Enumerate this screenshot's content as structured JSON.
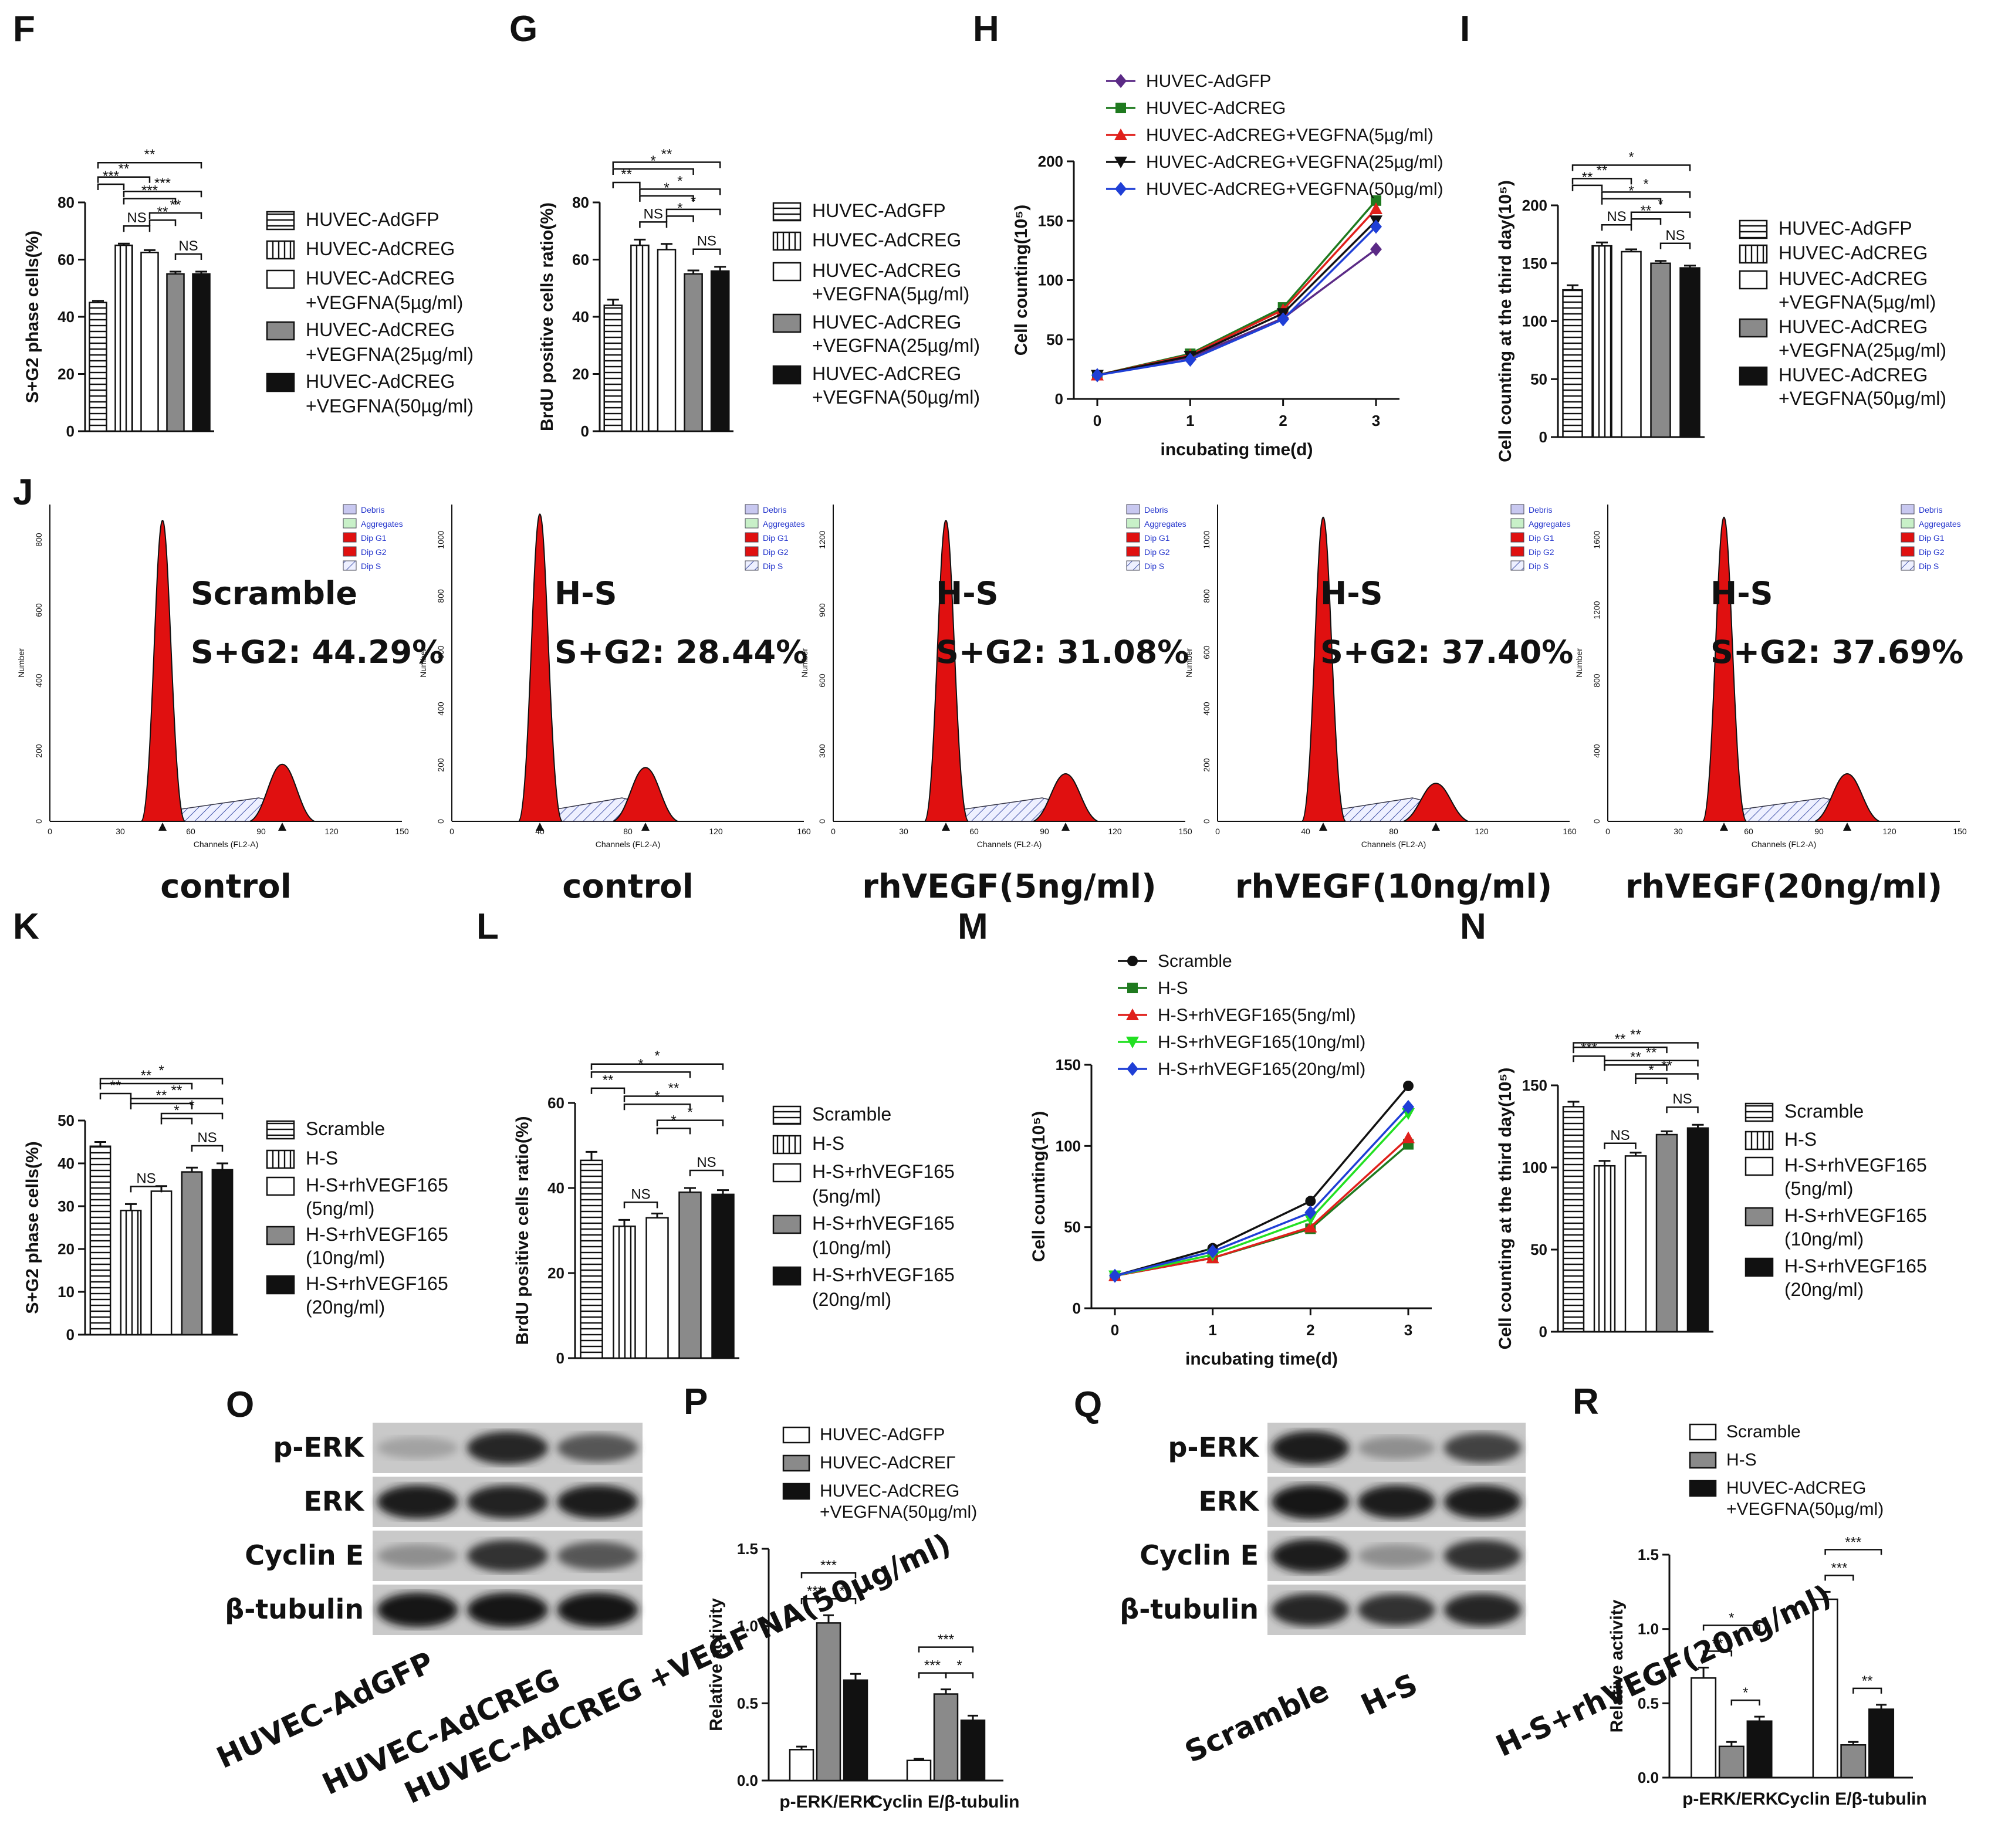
{
  "colors": {
    "purple": "#5b2a86",
    "green": "#1f7a1f",
    "red": "#e0201b",
    "black": "#111111",
    "blue": "#1f3fd6",
    "lime": "#22e022",
    "flowred": "#e01010"
  },
  "chart_data": [
    {
      "id": "F",
      "type": "bar",
      "panel_label": "F",
      "ylabel": "S+G2 phase cells(%)",
      "ylim": [
        0,
        80
      ],
      "yticks": [
        0,
        20,
        40,
        60,
        80
      ],
      "categories": [
        "HUVEC-AdGFP",
        "HUVEC-AdCREG",
        "HUVEC-AdCREG +VEGFNA(5µg/ml)",
        "HUVEC-AdCREG +VEGFNA(25µg/ml)",
        "HUVEC-AdCREG +VEGFNA(50µg/ml)"
      ],
      "values": [
        45,
        65,
        62.5,
        55,
        55
      ],
      "errors": [
        0.6,
        0.6,
        0.8,
        0.8,
        0.8
      ],
      "legend": [
        [
          "HUVEC-AdGFP"
        ],
        [
          "HUVEC-AdCREG"
        ],
        [
          "HUVEC-AdCREG",
          "+VEGFNA(5µg/ml)"
        ],
        [
          "HUVEC-AdCREG",
          "+VEGFNA(25µg/ml)"
        ],
        [
          "HUVEC-AdCREG",
          "+VEGFNA(50µg/ml)"
        ]
      ],
      "fills": [
        "hstripe",
        "vstripe",
        "white",
        "gray",
        "black"
      ],
      "sig": [
        [
          0,
          4,
          "**"
        ],
        [
          0,
          2,
          "**"
        ],
        [
          0,
          1,
          "***"
        ],
        [
          1,
          4,
          "***"
        ],
        [
          1,
          3,
          "***"
        ],
        [
          2,
          4,
          "**"
        ],
        [
          2,
          3,
          "**"
        ],
        [
          1,
          2,
          "NS"
        ],
        [
          3,
          4,
          "NS"
        ]
      ]
    },
    {
      "id": "G",
      "type": "bar",
      "panel_label": "G",
      "ylabel": "BrdU positive cells ratio(%)",
      "ylim": [
        0,
        80
      ],
      "yticks": [
        0,
        20,
        40,
        60,
        80
      ],
      "categories": [
        "HUVEC-AdGFP",
        "HUVEC-AdCREG",
        "HUVEC-AdCREG +VEGFNA(5µg/ml)",
        "HUVEC-AdCREG +VEGFNA(25µg/ml)",
        "HUVEC-AdCREG +VEGFNA(50µg/ml)"
      ],
      "values": [
        44,
        65,
        63.5,
        55,
        56
      ],
      "errors": [
        2,
        2,
        2,
        1.2,
        1.5
      ],
      "legend": [
        [
          "HUVEC-AdGFP"
        ],
        [
          "HUVEC-AdCREG"
        ],
        [
          "HUVEC-AdCREG",
          "+VEGFNA(5µg/ml)"
        ],
        [
          "HUVEC-AdCREG",
          "+VEGFNA(25µg/ml)"
        ],
        [
          "HUVEC-AdCREG",
          "+VEGFNA(50µg/ml)"
        ]
      ],
      "fills": [
        "hstripe",
        "vstripe",
        "white",
        "gray",
        "black"
      ],
      "sig": [
        [
          0,
          4,
          "**"
        ],
        [
          0,
          3,
          "*"
        ],
        [
          0,
          1,
          "**"
        ],
        [
          1,
          4,
          "*"
        ],
        [
          1,
          3,
          "*"
        ],
        [
          2,
          4,
          "*"
        ],
        [
          2,
          3,
          "*"
        ],
        [
          1,
          2,
          "NS"
        ],
        [
          3,
          4,
          "NS"
        ]
      ]
    },
    {
      "id": "H",
      "type": "line",
      "panel_label": "H",
      "ylabel": "Cell counting(10⁵)",
      "xlabel": "incubating time(d)",
      "ylim": [
        0,
        200
      ],
      "yticks": [
        0,
        50,
        100,
        150,
        200
      ],
      "x": [
        0,
        1,
        2,
        3
      ],
      "series": [
        {
          "name": "HUVEC-AdGFP",
          "values": [
            20,
            35,
            68,
            126
          ],
          "color": "#5b2a86",
          "marker": "diamond"
        },
        {
          "name": "HUVEC-AdCREG",
          "values": [
            20,
            38,
            77,
            167
          ],
          "color": "#1f7a1f",
          "marker": "square"
        },
        {
          "name": "HUVEC-AdCREG+VEGFNA(5µg/ml)",
          "values": [
            20,
            37,
            75,
            160
          ],
          "color": "#e0201b",
          "marker": "triangle"
        },
        {
          "name": "HUVEC-AdCREG+VEGFNA(25µg/ml)",
          "values": [
            20,
            36,
            72,
            150
          ],
          "color": "#111111",
          "marker": "triangle-down"
        },
        {
          "name": "HUVEC-AdCREG+VEGFNA(50µg/ml)",
          "values": [
            20,
            33,
            67,
            145
          ],
          "color": "#1f3fd6",
          "marker": "diamond"
        }
      ]
    },
    {
      "id": "I",
      "type": "bar",
      "panel_label": "I",
      "ylabel": "Cell counting at the third day(10⁵)",
      "ylim": [
        0,
        200
      ],
      "yticks": [
        0,
        50,
        100,
        150,
        200
      ],
      "categories": [
        "HUVEC-AdGFP",
        "HUVEC-AdCREG",
        "HUVEC-AdCREG +VEGFNA(5µg/ml)",
        "HUVEC-AdCREG +VEGFNA(25µg/ml)",
        "HUVEC-AdCREG +VEGFNA(50µg/ml)"
      ],
      "values": [
        127,
        165,
        160,
        150,
        146
      ],
      "errors": [
        4,
        3,
        2,
        2,
        2
      ],
      "legend": [
        [
          "HUVEC-AdGFP"
        ],
        [
          "HUVEC-AdCREG"
        ],
        [
          "HUVEC-AdCREG",
          "+VEGFNA(5µg/ml)"
        ],
        [
          "HUVEC-AdCREG",
          "+VEGFNA(25µg/ml)"
        ],
        [
          "HUVEC-AdCREG",
          "+VEGFNA(50µg/ml)"
        ]
      ],
      "fills": [
        "hstripe",
        "vstripe",
        "white",
        "gray",
        "black"
      ],
      "sig": [
        [
          0,
          4,
          "*"
        ],
        [
          0,
          2,
          "**"
        ],
        [
          0,
          1,
          "**"
        ],
        [
          1,
          4,
          "*"
        ],
        [
          1,
          3,
          "*"
        ],
        [
          2,
          4,
          "*"
        ],
        [
          2,
          3,
          "**"
        ],
        [
          1,
          2,
          "NS"
        ],
        [
          3,
          4,
          "NS"
        ]
      ]
    },
    {
      "id": "K",
      "type": "bar",
      "panel_label": "K",
      "ylabel": "S+G2 phase cells(%)",
      "ylim": [
        0,
        50
      ],
      "yticks": [
        0,
        10,
        20,
        30,
        40,
        50
      ],
      "categories": [
        "Scramble",
        "H-S",
        "H-S+rhVEGF165 (5ng/ml)",
        "H-S+rhVEGF165 (10ng/ml)",
        "H-S+rhVEGF165 (20ng/ml)"
      ],
      "values": [
        44,
        29,
        33.5,
        38,
        38.5
      ],
      "errors": [
        1,
        1.5,
        1.2,
        1,
        1.5
      ],
      "legend": [
        [
          "Scramble"
        ],
        [
          "H-S"
        ],
        [
          "H-S+rhVEGF165",
          "(5ng/ml)"
        ],
        [
          "H-S+rhVEGF165",
          "(10ng/ml)"
        ],
        [
          "H-S+rhVEGF165",
          "(20ng/ml)"
        ]
      ],
      "fills": [
        "hstripe",
        "vstripe",
        "white",
        "gray",
        "black"
      ],
      "sig": [
        [
          0,
          4,
          "*"
        ],
        [
          0,
          3,
          "**"
        ],
        [
          0,
          1,
          "**"
        ],
        [
          1,
          4,
          "**"
        ],
        [
          1,
          3,
          "**"
        ],
        [
          2,
          4,
          "*"
        ],
        [
          2,
          3,
          "*"
        ],
        [
          1,
          2,
          "NS"
        ],
        [
          3,
          4,
          "NS"
        ]
      ]
    },
    {
      "id": "L",
      "type": "bar",
      "panel_label": "L",
      "ylabel": "BrdU positive cells ratio(%)",
      "ylim": [
        0,
        60
      ],
      "yticks": [
        0,
        20,
        40,
        60
      ],
      "categories": [
        "Scramble",
        "H-S",
        "H-S+rhVEGF165 (5ng/ml)",
        "H-S+rhVEGF165 (10ng/ml)",
        "H-S+rhVEGF165 (20ng/ml)"
      ],
      "values": [
        46.5,
        31,
        33,
        39,
        38.5
      ],
      "errors": [
        2,
        1.5,
        1,
        1,
        1
      ],
      "legend": [
        [
          "Scramble"
        ],
        [
          "H-S"
        ],
        [
          "H-S+rhVEGF165",
          "(5ng/ml)"
        ],
        [
          "H-S+rhVEGF165",
          "(10ng/ml)"
        ],
        [
          "H-S+rhVEGF165",
          "(20ng/ml)"
        ]
      ],
      "fills": [
        "hstripe",
        "vstripe",
        "white",
        "gray",
        "black"
      ],
      "sig": [
        [
          0,
          4,
          "*"
        ],
        [
          0,
          3,
          "*"
        ],
        [
          0,
          1,
          "**"
        ],
        [
          1,
          4,
          "**"
        ],
        [
          1,
          3,
          "*"
        ],
        [
          2,
          4,
          "*"
        ],
        [
          2,
          3,
          "*"
        ],
        [
          1,
          2,
          "NS"
        ],
        [
          3,
          4,
          "NS"
        ]
      ]
    },
    {
      "id": "M",
      "type": "line",
      "panel_label": "M",
      "ylabel": "Cell counting(10⁵)",
      "xlabel": "incubating time(d)",
      "ylim": [
        0,
        150
      ],
      "yticks": [
        0,
        50,
        100,
        150
      ],
      "x": [
        0,
        1,
        2,
        3
      ],
      "series": [
        {
          "name": "Scramble",
          "values": [
            20,
            37,
            66,
            137
          ],
          "color": "#111111",
          "marker": "circle"
        },
        {
          "name": "H-S",
          "values": [
            20,
            31,
            49,
            101
          ],
          "color": "#1f7a1f",
          "marker": "square"
        },
        {
          "name": "H-S+rhVEGF165(5ng/ml)",
          "values": [
            20,
            31,
            50,
            105
          ],
          "color": "#e0201b",
          "marker": "triangle"
        },
        {
          "name": "H-S+rhVEGF165(10ng/ml)",
          "values": [
            20,
            33,
            55,
            120
          ],
          "color": "#22e022",
          "marker": "triangle-down"
        },
        {
          "name": "H-S+rhVEGF165(20ng/ml)",
          "values": [
            20,
            35,
            59,
            124
          ],
          "color": "#1f3fd6",
          "marker": "diamond"
        }
      ]
    },
    {
      "id": "N",
      "type": "bar",
      "panel_label": "N",
      "ylabel": "Cell counting at the third day(10⁵)",
      "ylim": [
        0,
        150
      ],
      "yticks": [
        0,
        50,
        100,
        150
      ],
      "categories": [
        "Scramble",
        "H-S",
        "H-S+rhVEGF165 (5ng/ml)",
        "H-S+rhVEGF165 (10ng/ml)",
        "H-S+rhVEGF165 (20ng/ml)"
      ],
      "values": [
        137,
        101,
        107,
        120,
        124
      ],
      "errors": [
        3,
        3,
        2,
        2,
        2
      ],
      "legend": [
        [
          "Scramble"
        ],
        [
          "H-S"
        ],
        [
          "H-S+rhVEGF165",
          "(5ng/ml)"
        ],
        [
          "H-S+rhVEGF165",
          "(10ng/ml)"
        ],
        [
          "H-S+rhVEGF165",
          "(20ng/ml)"
        ]
      ],
      "fills": [
        "hstripe",
        "vstripe",
        "white",
        "gray",
        "black"
      ],
      "sig": [
        [
          0,
          4,
          "**"
        ],
        [
          0,
          3,
          "**"
        ],
        [
          0,
          1,
          "***"
        ],
        [
          1,
          4,
          "**"
        ],
        [
          1,
          3,
          "**"
        ],
        [
          2,
          4,
          "**"
        ],
        [
          2,
          3,
          "*"
        ],
        [
          1,
          2,
          "NS"
        ],
        [
          3,
          4,
          "NS"
        ]
      ]
    },
    {
      "id": "P",
      "type": "bar",
      "panel_label": "P",
      "ylabel": "Relative activity",
      "ylim": [
        0,
        1.5
      ],
      "yticks": [
        0.0,
        0.5,
        1.0,
        1.5
      ],
      "categories": [
        "p-ERK/ERK",
        "Cyclin E/β-tubulin"
      ],
      "series": [
        {
          "name": "HUVEC-AdGFP",
          "values": [
            0.2,
            0.13
          ],
          "errors": [
            0.02,
            0.01
          ],
          "fill": "white"
        },
        {
          "name": "HUVEC-AdCREΓ",
          "values": [
            1.02,
            0.56
          ],
          "errors": [
            0.05,
            0.03
          ],
          "fill": "gray"
        },
        {
          "name": "HUVEC-AdCREG +VEGFNA(50µg/ml)",
          "values": [
            0.65,
            0.39
          ],
          "errors": [
            0.04,
            0.03
          ],
          "fill": "black"
        }
      ],
      "legend": [
        [
          "HUVEC-AdGFP"
        ],
        [
          "HUVEC-AdCREΓ"
        ],
        [
          "HUVEC-AdCREG",
          "+VEGFNA(50µg/ml)"
        ]
      ],
      "sig": [
        [
          0,
          0,
          2,
          "***"
        ],
        [
          0,
          0,
          1,
          "***"
        ],
        [
          0,
          1,
          2,
          "*"
        ],
        [
          1,
          0,
          2,
          "***"
        ],
        [
          1,
          0,
          1,
          "***"
        ],
        [
          1,
          1,
          2,
          "*"
        ]
      ]
    },
    {
      "id": "R",
      "type": "bar",
      "panel_label": "R",
      "ylabel": "Relative activity",
      "ylim": [
        0,
        1.5
      ],
      "yticks": [
        0.0,
        0.5,
        1.0,
        1.5
      ],
      "categories": [
        "p-ERK/ERK",
        "Cyclin E/β-tubulin"
      ],
      "series": [
        {
          "name": "Scramble",
          "values": [
            0.67,
            1.2
          ],
          "errors": [
            0.07,
            0.05
          ],
          "fill": "white"
        },
        {
          "name": "H-S",
          "values": [
            0.21,
            0.22
          ],
          "errors": [
            0.03,
            0.02
          ],
          "fill": "gray"
        },
        {
          "name": "HUVEC-AdCREG +VEGFNA(50µg/ml)",
          "values": [
            0.38,
            0.46
          ],
          "errors": [
            0.03,
            0.03
          ],
          "fill": "black"
        }
      ],
      "legend": [
        [
          "Scramble"
        ],
        [
          "H-S"
        ],
        [
          "HUVEC-AdCREG",
          "+VEGFNA(50µg/ml)"
        ]
      ],
      "sig": [
        [
          0,
          0,
          2,
          "*"
        ],
        [
          0,
          0,
          1,
          "**"
        ],
        [
          0,
          1,
          2,
          "*"
        ],
        [
          1,
          0,
          2,
          "***"
        ],
        [
          1,
          0,
          1,
          "***"
        ],
        [
          1,
          1,
          2,
          "**"
        ]
      ]
    }
  ],
  "flow": {
    "panel_label": "J",
    "ylabel": "Number",
    "xlabel": "Channels (FL2-A)",
    "legend": [
      "Debris",
      "Aggregates",
      "Dip G1",
      "Dip G2",
      "Dip S"
    ],
    "panels": [
      {
        "group": "Scramble",
        "value": "S+G2: 44.29%",
        "caption": "control",
        "xticks": [
          "0",
          "30",
          "60",
          "90",
          "120",
          "150"
        ],
        "yticks": [
          "0",
          "200",
          "400",
          "600",
          "800"
        ],
        "g1": 0.32,
        "g2": 0.66,
        "h1": 0.95,
        "h2": 0.18
      },
      {
        "group": "H-S",
        "value": "S+G2: 28.44%",
        "caption": "control",
        "xticks": [
          "0",
          "40",
          "80",
          "120",
          "160"
        ],
        "yticks": [
          "0",
          "200",
          "400",
          "600",
          "800",
          "1000"
        ],
        "g1": 0.25,
        "g2": 0.55,
        "h1": 0.97,
        "h2": 0.17
      },
      {
        "group": "H-S",
        "value": "S+G2: 31.08%",
        "caption": "rhVEGF(5ng/ml)",
        "xticks": [
          "0",
          "30",
          "60",
          "90",
          "120",
          "150"
        ],
        "yticks": [
          "0",
          "300",
          "600",
          "900",
          "1200"
        ],
        "g1": 0.32,
        "g2": 0.66,
        "h1": 0.95,
        "h2": 0.15
      },
      {
        "group": "H-S",
        "value": "S+G2: 37.40%",
        "caption": "rhVEGF(10ng/ml)",
        "xticks": [
          "0",
          "40",
          "80",
          "120",
          "160"
        ],
        "yticks": [
          "0",
          "200",
          "400",
          "600",
          "800",
          "1000"
        ],
        "g1": 0.3,
        "g2": 0.62,
        "h1": 0.96,
        "h2": 0.12
      },
      {
        "group": "H-S",
        "value": "S+G2: 37.69%",
        "caption": "rhVEGF(20ng/ml)",
        "xticks": [
          "0",
          "30",
          "60",
          "90",
          "120",
          "150"
        ],
        "yticks": [
          "0",
          "400",
          "800",
          "1200",
          "1600"
        ],
        "g1": 0.33,
        "g2": 0.68,
        "h1": 0.96,
        "h2": 0.15
      }
    ]
  },
  "western": [
    {
      "panel_label": "O",
      "rows": [
        "p-ERK",
        "ERK",
        "Cyclin E",
        "β-tubulin"
      ],
      "lanes": [
        "HUVEC-AdGFP",
        "HUVEC-AdCREG",
        "HUVEC-AdCREG +VEGF NA(50µg/ml)"
      ],
      "intensity": [
        [
          0.2,
          0.85,
          0.6
        ],
        [
          0.9,
          0.88,
          0.9
        ],
        [
          0.3,
          0.8,
          0.6
        ],
        [
          0.95,
          0.95,
          0.95
        ]
      ]
    },
    {
      "panel_label": "Q",
      "rows": [
        "p-ERK",
        "ERK",
        "Cyclin E",
        "β-tubulin"
      ],
      "lanes": [
        "Scramble",
        "H-S",
        "H-S+rhVEGF(20ng/ml)"
      ],
      "intensity": [
        [
          0.9,
          0.3,
          0.7
        ],
        [
          0.95,
          0.9,
          0.9
        ],
        [
          0.9,
          0.3,
          0.8
        ],
        [
          0.85,
          0.8,
          0.85
        ]
      ]
    }
  ]
}
